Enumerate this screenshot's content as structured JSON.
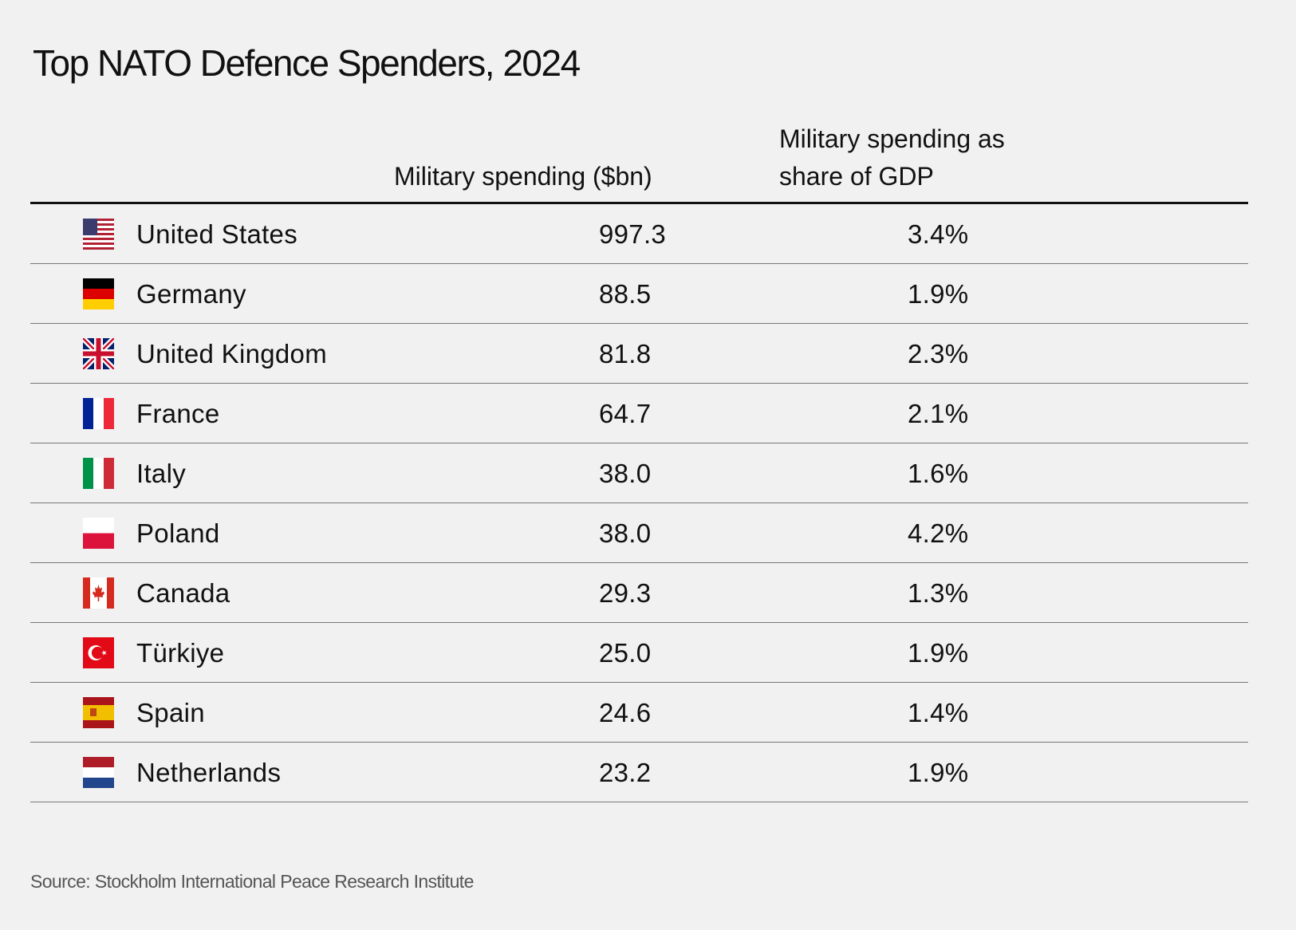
{
  "header": {
    "title": "Top NATO Defence Spenders, 2024"
  },
  "table": {
    "columns": [
      "Military spending ($bn)",
      "Military spending as share of GDP"
    ],
    "rows": [
      [
        "United States",
        "997.3",
        "3.4%"
      ],
      [
        "Germany",
        "88.5",
        "1.9%"
      ],
      [
        "United Kingdom",
        "81.8",
        "2.3%"
      ],
      [
        "France",
        "64.7",
        "2.1%"
      ],
      [
        "Italy",
        "38.0",
        "1.6%"
      ],
      [
        "Poland",
        "38.0",
        "4.2%"
      ],
      [
        "Canada",
        "29.3",
        "1.3%"
      ],
      [
        "Türkiye",
        "25.0",
        "1.9%"
      ],
      [
        "Spain",
        "24.6",
        "1.4%"
      ],
      [
        "Netherlands",
        "23.2",
        "1.9%"
      ]
    ]
  },
  "footer": {
    "source": "Source: Stockholm International Peace Research Institute"
  }
}
